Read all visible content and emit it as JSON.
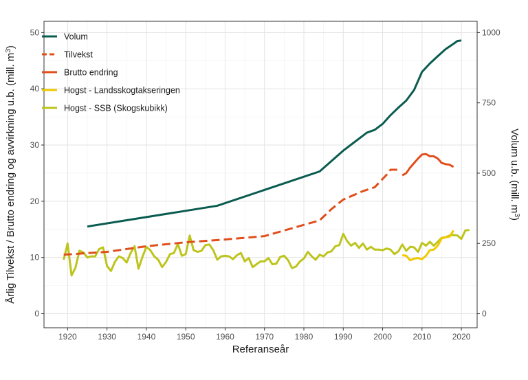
{
  "chart_data": {
    "type": "line",
    "xlabel": "Referanseår",
    "ylabel_left": "Årlig Tilvekst  /  Brutto endring og avvirkning u.b. (mill. m³)",
    "ylabel_right": "Volum u.b. (mill. m³)",
    "xlim": [
      1914,
      2024
    ],
    "ylim_left": [
      -2.5,
      52
    ],
    "ylim_right": [
      -50,
      1040
    ],
    "x_ticks": [
      1920,
      1930,
      1940,
      1950,
      1960,
      1970,
      1980,
      1990,
      2000,
      2010,
      2020
    ],
    "y_left_ticks": [
      0,
      10,
      20,
      30,
      40,
      50
    ],
    "y_right_ticks": [
      0,
      250,
      500,
      750,
      1000
    ],
    "grid": true,
    "legend_position": "top-left",
    "series": [
      {
        "name": "Volum",
        "axis": "right",
        "color": "#0a5c50",
        "dash": "solid",
        "points": [
          [
            1925,
            310
          ],
          [
            1958,
            384
          ],
          [
            1984,
            506
          ],
          [
            1990,
            580
          ],
          [
            1996,
            644
          ],
          [
            1998,
            654
          ],
          [
            2000,
            675
          ],
          [
            2002,
            706
          ],
          [
            2004,
            733
          ],
          [
            2006,
            758
          ],
          [
            2008,
            796
          ],
          [
            2010,
            860
          ],
          [
            2012,
            890
          ],
          [
            2014,
            916
          ],
          [
            2016,
            941
          ],
          [
            2018,
            960
          ],
          [
            2019,
            970
          ],
          [
            2020,
            972
          ]
        ]
      },
      {
        "name": "Tilvekst",
        "axis": "left",
        "color": "#e04e1b",
        "dash": "dash",
        "points": [
          [
            1919,
            10.5
          ],
          [
            1930,
            11.0
          ],
          [
            1940,
            12.0
          ],
          [
            1950,
            12.7
          ],
          [
            1960,
            13.2
          ],
          [
            1970,
            13.8
          ],
          [
            1980,
            15.8
          ],
          [
            1984,
            16.6
          ],
          [
            1987,
            18.6
          ],
          [
            1990,
            20.3
          ],
          [
            1995,
            21.8
          ],
          [
            1998,
            22.5
          ],
          [
            2001,
            24.7
          ],
          [
            2002,
            25.6
          ],
          [
            2004,
            25.6
          ]
        ]
      },
      {
        "name": "Brutto endring",
        "axis": "left",
        "color": "#e04e1b",
        "dash": "solid",
        "points": [
          [
            2005,
            24.6
          ],
          [
            2006,
            25.0
          ],
          [
            2007,
            26.0
          ],
          [
            2008,
            26.8
          ],
          [
            2009,
            27.6
          ],
          [
            2010,
            28.3
          ],
          [
            2011,
            28.4
          ],
          [
            2012,
            28.0
          ],
          [
            2013,
            28.0
          ],
          [
            2014,
            27.6
          ],
          [
            2015,
            26.8
          ],
          [
            2016,
            26.6
          ],
          [
            2017,
            26.5
          ],
          [
            2018,
            26.1
          ]
        ]
      },
      {
        "name": "Hogst - Landsskogtakseringen",
        "axis": "left",
        "color": "#f0c800",
        "dash": "solid",
        "points": [
          [
            2005,
            10.4
          ],
          [
            2006,
            10.3
          ],
          [
            2007,
            9.5
          ],
          [
            2008,
            9.8
          ],
          [
            2009,
            9.9
          ],
          [
            2010,
            9.7
          ],
          [
            2011,
            10.3
          ],
          [
            2012,
            11.3
          ],
          [
            2013,
            11.4
          ],
          [
            2014,
            12.1
          ],
          [
            2015,
            13.4
          ],
          [
            2016,
            13.6
          ],
          [
            2017,
            13.7
          ],
          [
            2018,
            14.8
          ]
        ]
      },
      {
        "name": "Hogst - SSB (Skogskubikk)",
        "axis": "left",
        "color": "#bdc41c",
        "dash": "solid",
        "points": [
          [
            1919,
            9.6
          ],
          [
            1920,
            12.5
          ],
          [
            1921,
            6.8
          ],
          [
            1922,
            8.2
          ],
          [
            1923,
            11.2
          ],
          [
            1924,
            10.9
          ],
          [
            1925,
            10.0
          ],
          [
            1926,
            10.2
          ],
          [
            1927,
            10.2
          ],
          [
            1928,
            11.5
          ],
          [
            1929,
            11.8
          ],
          [
            1930,
            8.5
          ],
          [
            1931,
            7.6
          ],
          [
            1932,
            9.2
          ],
          [
            1933,
            10.2
          ],
          [
            1934,
            9.9
          ],
          [
            1935,
            9.1
          ],
          [
            1936,
            10.8
          ],
          [
            1937,
            12.0
          ],
          [
            1938,
            8.0
          ],
          [
            1939,
            10.1
          ],
          [
            1940,
            11.9
          ],
          [
            1941,
            11.3
          ],
          [
            1942,
            10.2
          ],
          [
            1943,
            9.6
          ],
          [
            1944,
            8.3
          ],
          [
            1945,
            9.2
          ],
          [
            1946,
            10.6
          ],
          [
            1947,
            10.8
          ],
          [
            1948,
            12.4
          ],
          [
            1949,
            10.3
          ],
          [
            1950,
            10.6
          ],
          [
            1951,
            13.9
          ],
          [
            1952,
            11.3
          ],
          [
            1953,
            11.0
          ],
          [
            1954,
            11.2
          ],
          [
            1955,
            12.2
          ],
          [
            1956,
            12.3
          ],
          [
            1957,
            11.3
          ],
          [
            1958,
            9.6
          ],
          [
            1959,
            10.2
          ],
          [
            1960,
            10.3
          ],
          [
            1961,
            10.2
          ],
          [
            1962,
            9.7
          ],
          [
            1963,
            10.4
          ],
          [
            1964,
            10.8
          ],
          [
            1965,
            9.3
          ],
          [
            1966,
            9.9
          ],
          [
            1967,
            8.3
          ],
          [
            1968,
            8.8
          ],
          [
            1969,
            9.3
          ],
          [
            1970,
            9.3
          ],
          [
            1971,
            9.9
          ],
          [
            1972,
            8.8
          ],
          [
            1973,
            8.9
          ],
          [
            1974,
            10.1
          ],
          [
            1975,
            10.3
          ],
          [
            1976,
            9.5
          ],
          [
            1977,
            8.1
          ],
          [
            1978,
            8.4
          ],
          [
            1979,
            9.3
          ],
          [
            1980,
            9.8
          ],
          [
            1981,
            11.0
          ],
          [
            1982,
            10.2
          ],
          [
            1983,
            9.6
          ],
          [
            1984,
            10.5
          ],
          [
            1985,
            10.2
          ],
          [
            1986,
            10.9
          ],
          [
            1987,
            11.1
          ],
          [
            1988,
            12.0
          ],
          [
            1989,
            12.2
          ],
          [
            1990,
            14.2
          ],
          [
            1991,
            12.9
          ],
          [
            1992,
            12.1
          ],
          [
            1993,
            12.6
          ],
          [
            1994,
            11.7
          ],
          [
            1995,
            12.5
          ],
          [
            1996,
            11.4
          ],
          [
            1997,
            11.9
          ],
          [
            1998,
            11.4
          ],
          [
            1999,
            11.4
          ],
          [
            2000,
            11.3
          ],
          [
            2001,
            11.6
          ],
          [
            2002,
            11.4
          ],
          [
            2003,
            10.6
          ],
          [
            2004,
            11.1
          ],
          [
            2005,
            12.3
          ],
          [
            2006,
            11.2
          ],
          [
            2007,
            11.9
          ],
          [
            2008,
            11.8
          ],
          [
            2009,
            11.0
          ],
          [
            2010,
            12.6
          ],
          [
            2011,
            12.1
          ],
          [
            2012,
            12.8
          ],
          [
            2013,
            12.1
          ],
          [
            2014,
            12.8
          ],
          [
            2015,
            13.5
          ],
          [
            2016,
            13.6
          ],
          [
            2017,
            13.9
          ],
          [
            2018,
            14.0
          ],
          [
            2019,
            13.9
          ],
          [
            2020,
            13.3
          ],
          [
            2021,
            14.8
          ],
          [
            2022,
            14.9
          ]
        ]
      }
    ]
  }
}
